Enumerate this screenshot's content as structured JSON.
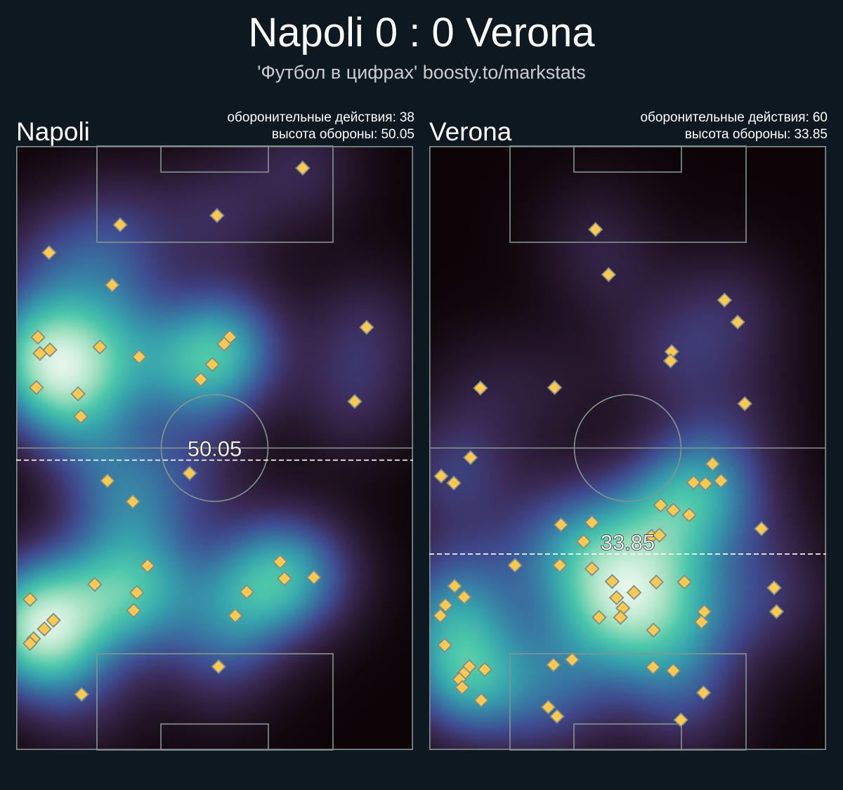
{
  "header": {
    "title": "Napoli 0 : 0 Verona",
    "subtitle": "'Футбол в цифрах' boosty.to/markstats"
  },
  "colors": {
    "background": "#0e1820",
    "marker_fill": "#fdc94d",
    "marker_stroke": "#7f8d8b",
    "pitch_lines": "#84958f",
    "defense_line": "#ffffff",
    "heatmap_colormap": [
      "#0c0407",
      "#241629",
      "#3a2a55",
      "#3f4a8e",
      "#3875a2",
      "#36a2ad",
      "#4cc7aa",
      "#9fe0bf",
      "#e4f6ea"
    ]
  },
  "panels": [
    {
      "team": "Napoli",
      "actions_label": "оборонительные действия:",
      "actions_value": "38",
      "height_label": "высота обороны:",
      "height_value": "50.05"
    },
    {
      "team": "Verona",
      "actions_label": "оборонительные действия:",
      "actions_value": "60",
      "height_label": "высота обороны:",
      "height_value": "33.85"
    }
  ],
  "chart_data": [
    {
      "type": "scatter",
      "overlay": "heatmap (kde)",
      "title": "Napoli",
      "marker": "diamond",
      "xlim": [
        0,
        100
      ],
      "ylim": [
        0,
        104.3
      ],
      "defense_height": 50.05,
      "defensive_actions": 38,
      "points": [
        [
          72.2,
          100.5
        ],
        [
          26.2,
          90.7
        ],
        [
          50.6,
          92.3
        ],
        [
          8.3,
          85.9
        ],
        [
          24.2,
          80.3
        ],
        [
          5.5,
          71.3
        ],
        [
          8.5,
          69.1
        ],
        [
          6.0,
          68.5
        ],
        [
          21.1,
          69.6
        ],
        [
          31.0,
          67.9
        ],
        [
          53.8,
          71.3
        ],
        [
          52.4,
          70.1
        ],
        [
          49.4,
          66.6
        ],
        [
          46.5,
          64.0
        ],
        [
          88.3,
          73.0
        ],
        [
          5.1,
          62.6
        ],
        [
          15.6,
          61.5
        ],
        [
          16.3,
          57.6
        ],
        [
          85.3,
          60.2
        ],
        [
          43.7,
          47.8
        ],
        [
          23.0,
          46.5
        ],
        [
          29.4,
          42.9
        ],
        [
          33.1,
          31.8
        ],
        [
          19.8,
          28.6
        ],
        [
          30.4,
          27.2
        ],
        [
          29.6,
          24.1
        ],
        [
          3.5,
          26.0
        ],
        [
          9.4,
          22.4
        ],
        [
          7.1,
          20.9
        ],
        [
          4.4,
          19.2
        ],
        [
          3.5,
          18.4
        ],
        [
          66.5,
          32.5
        ],
        [
          67.6,
          29.6
        ],
        [
          75.0,
          29.8
        ],
        [
          58.1,
          27.3
        ],
        [
          55.2,
          23.2
        ],
        [
          51.0,
          14.4
        ],
        [
          16.5,
          9.6
        ]
      ]
    },
    {
      "type": "scatter",
      "overlay": "heatmap (kde)",
      "title": "Verona",
      "marker": "diamond",
      "xlim": [
        0,
        100
      ],
      "ylim": [
        0,
        104.3
      ],
      "defense_height": 33.85,
      "defensive_actions": 60,
      "points": [
        [
          41.9,
          89.9
        ],
        [
          45.2,
          82.1
        ],
        [
          74.4,
          77.7
        ],
        [
          77.7,
          73.9
        ],
        [
          61.1,
          68.8
        ],
        [
          60.8,
          67.2
        ],
        [
          12.9,
          62.5
        ],
        [
          31.6,
          62.6
        ],
        [
          79.5,
          59.8
        ],
        [
          10.4,
          50.5
        ],
        [
          3.0,
          47.3
        ],
        [
          6.2,
          46.1
        ],
        [
          71.4,
          49.4
        ],
        [
          66.6,
          46.2
        ],
        [
          69.6,
          46.0
        ],
        [
          73.5,
          46.5
        ],
        [
          58.3,
          42.3
        ],
        [
          61.5,
          41.4
        ],
        [
          65.5,
          40.6
        ],
        [
          33.2,
          38.9
        ],
        [
          41.0,
          39.3
        ],
        [
          83.7,
          38.2
        ],
        [
          56.0,
          36.9
        ],
        [
          58.0,
          37.1
        ],
        [
          38.9,
          36.0
        ],
        [
          21.6,
          31.9
        ],
        [
          32.9,
          31.9
        ],
        [
          41.0,
          31.3
        ],
        [
          46.1,
          29.1
        ],
        [
          57.2,
          29.0
        ],
        [
          64.3,
          29.0
        ],
        [
          51.6,
          27.2
        ],
        [
          47.2,
          26.3
        ],
        [
          48.8,
          24.5
        ],
        [
          48.2,
          22.9
        ],
        [
          42.8,
          22.9
        ],
        [
          56.5,
          20.7
        ],
        [
          86.9,
          28.0
        ],
        [
          87.5,
          23.9
        ],
        [
          69.3,
          23.9
        ],
        [
          68.6,
          22.1
        ],
        [
          6.4,
          28.3
        ],
        [
          8.8,
          26.4
        ],
        [
          4.1,
          25.0
        ],
        [
          2.8,
          23.2
        ],
        [
          3.9,
          18.1
        ],
        [
          10.1,
          14.4
        ],
        [
          8.7,
          13.2
        ],
        [
          7.6,
          12.2
        ],
        [
          8.3,
          10.8
        ],
        [
          14.0,
          13.9
        ],
        [
          13.1,
          8.6
        ],
        [
          31.3,
          14.7
        ],
        [
          36.0,
          15.6
        ],
        [
          56.4,
          14.3
        ],
        [
          61.5,
          13.7
        ],
        [
          69.1,
          9.9
        ],
        [
          30.0,
          7.4
        ],
        [
          32.2,
          5.8
        ],
        [
          63.4,
          5.2
        ]
      ]
    }
  ]
}
